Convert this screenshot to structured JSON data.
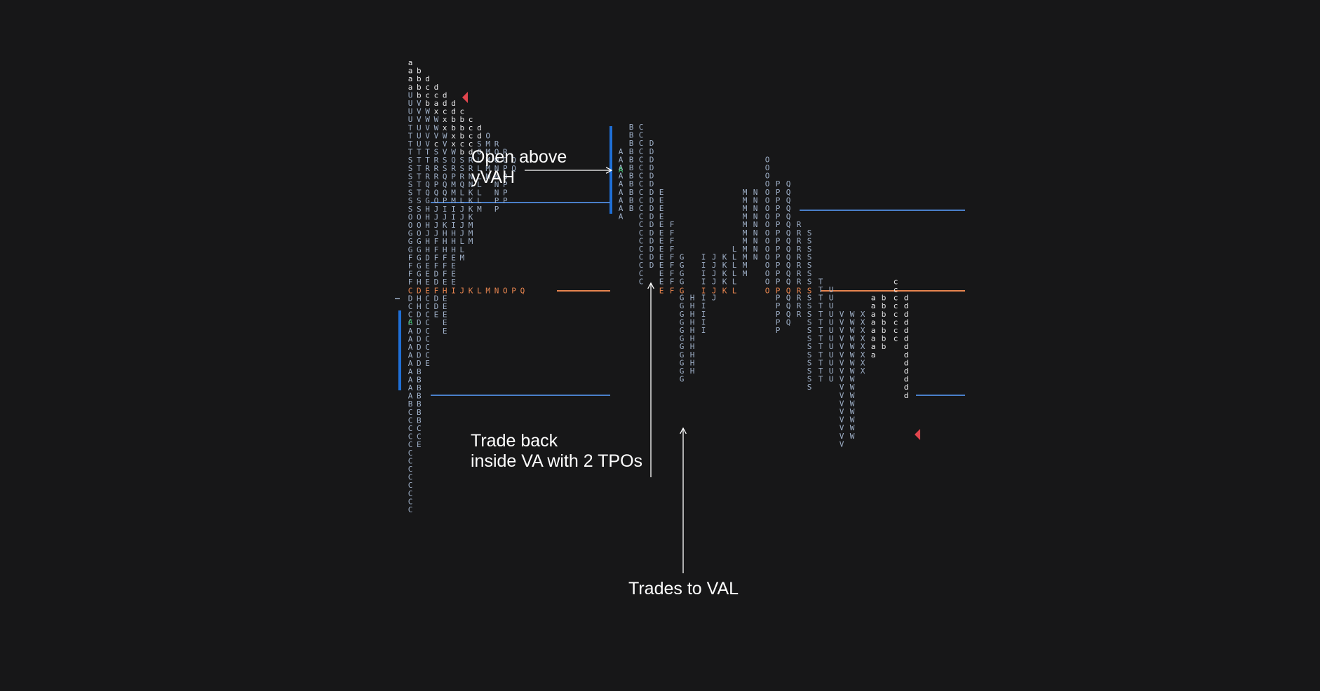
{
  "chart_data": {
    "type": "market-profile",
    "colors": {
      "background": "#171718",
      "tpo_default": "#9fb0c8",
      "tpo_point_of_control": "#e8854f",
      "tpo_letters_lowercase": "#e8e8ea",
      "open_marker": "#3fb96b",
      "value_area_bar": "#1f6fd6",
      "value_area_line": "#4a7fc9",
      "poc_line": "#e8854f",
      "close_marker": "#e0454d",
      "annotation_text": "#ffffff",
      "arrow": "#ffffff"
    },
    "profiles": [
      {
        "columns": [
          {
            "top": 0,
            "letters": "aaaaUUUUTTTTSSSSSSSOOGGGFFFFDDCCCAAAAAAAAABCCCCCCCCCCCCC"
          },
          {
            "top": 1,
            "letters": "bbbbVVVUUUTTTTTTSSOOOGGGGGHGHHDDDDDDDBBBBBBBCCE"
          },
          {
            "top": 2,
            "letters": "dccbWWVVVTTRRQQGHHHJHHDEEEECCCCCCCCE"
          },
          {
            "top": 3,
            "letters": "dcaxWWVcSRRRPQOJJJJFFFFDDDDDE"
          },
          {
            "top": 4,
            "letters": "ddcxxWVVSSQQQPIJKHHHFFFEEEEEEE"
          },
          {
            "top": 5,
            "letters": "ddbbxxWQRPMMMIIIHHHEEEEM"
          },
          {
            "top": 6,
            "letters": "cbbbcbSSRQLLJJJJLLM"
          },
          {
            "top": 7,
            "letters": "ccccdRRNNKKKKMMM"
          },
          {
            "top": 8,
            "letters": "ddSOLLLLLLM"
          },
          {
            "top": 9,
            "letters": "OMMMMM"
          },
          {
            "top": 10,
            "letters": "ROONNNNPP"
          },
          {
            "top": 11,
            "letters": "RQPOPPP"
          },
          {
            "top": 12,
            "letters": "QQ"
          }
        ],
        "poc_string": "CDEFHIJKLMNOPQ",
        "open_marker_letter": "A",
        "close_marker": true
      },
      {
        "columns": [
          {
            "top": 0,
            "letters": "AAAAAAAAA"
          },
          {
            "top": 0,
            "letters": "BBBBBBBBBBB"
          },
          {
            "top": 0,
            "letters": "CCCCCCCCCCCCCCCCCCCC"
          },
          {
            "top": 0,
            "letters": "DDDDDDDDDDDDDDDD"
          },
          {
            "top": 0,
            "letters": "EEEEEEEEEEEE"
          },
          {
            "top": 0,
            "letters": "FFFFFFFF"
          },
          {
            "top": 0,
            "letters": "GGGGGGGGGGGGGGGG"
          },
          {
            "top": 0,
            "letters": "HHHHHHHHHH"
          },
          {
            "top": 0,
            "letters": "IIIIIIIIII"
          },
          {
            "top": 0,
            "letters": "JJJJJJ"
          },
          {
            "top": 0,
            "letters": "KKKK"
          },
          {
            "top": 0,
            "letters": "LLLLL"
          },
          {
            "top": 0,
            "letters": "MMMMMMMMMMM"
          },
          {
            "top": 0,
            "letters": "NNNNNNNNN"
          },
          {
            "top": 0,
            "letters": "OOOOOOOOOOOOOOOOO"
          },
          {
            "top": 0,
            "letters": "PPPPPPPPPPPPPPPPPPP"
          },
          {
            "top": 0,
            "letters": "QQQQQQQQQQQQQQQQQQ"
          },
          {
            "top": 0,
            "letters": "RRRRRRRRRRRR"
          },
          {
            "top": 0,
            "letters": "SSSSSSSSSSSSSSSSSSSS"
          },
          {
            "top": 0,
            "letters": "TTTTTTTTTTTTT"
          },
          {
            "top": 0,
            "letters": "UUUUUUUUUUUU"
          },
          {
            "top": 0,
            "letters": "VVVVVVVVVVVVVVVVV"
          },
          {
            "top": 0,
            "letters": "WWWWWWWWWWWWWWWW"
          },
          {
            "top": 0,
            "letters": "XXXXXXXX"
          },
          {
            "top": 0,
            "letters": "aaaaaaaa"
          },
          {
            "top": 0,
            "letters": "bbbbbbb"
          },
          {
            "top": 0,
            "letters": "cccccccc"
          },
          {
            "top": 0,
            "letters": "ddddddddddddd"
          }
        ],
        "poc_string": "EFGIJKLOPQRS",
        "open_marker_letter": "A",
        "close_marker": true
      }
    ],
    "annotations": [
      {
        "text_lines": [
          "Open above",
          "yVAH"
        ]
      },
      {
        "text_lines": [
          "Trade back",
          "inside VA with 2 TPOs"
        ]
      },
      {
        "text_lines": [
          "Trades to VAL"
        ]
      }
    ]
  }
}
